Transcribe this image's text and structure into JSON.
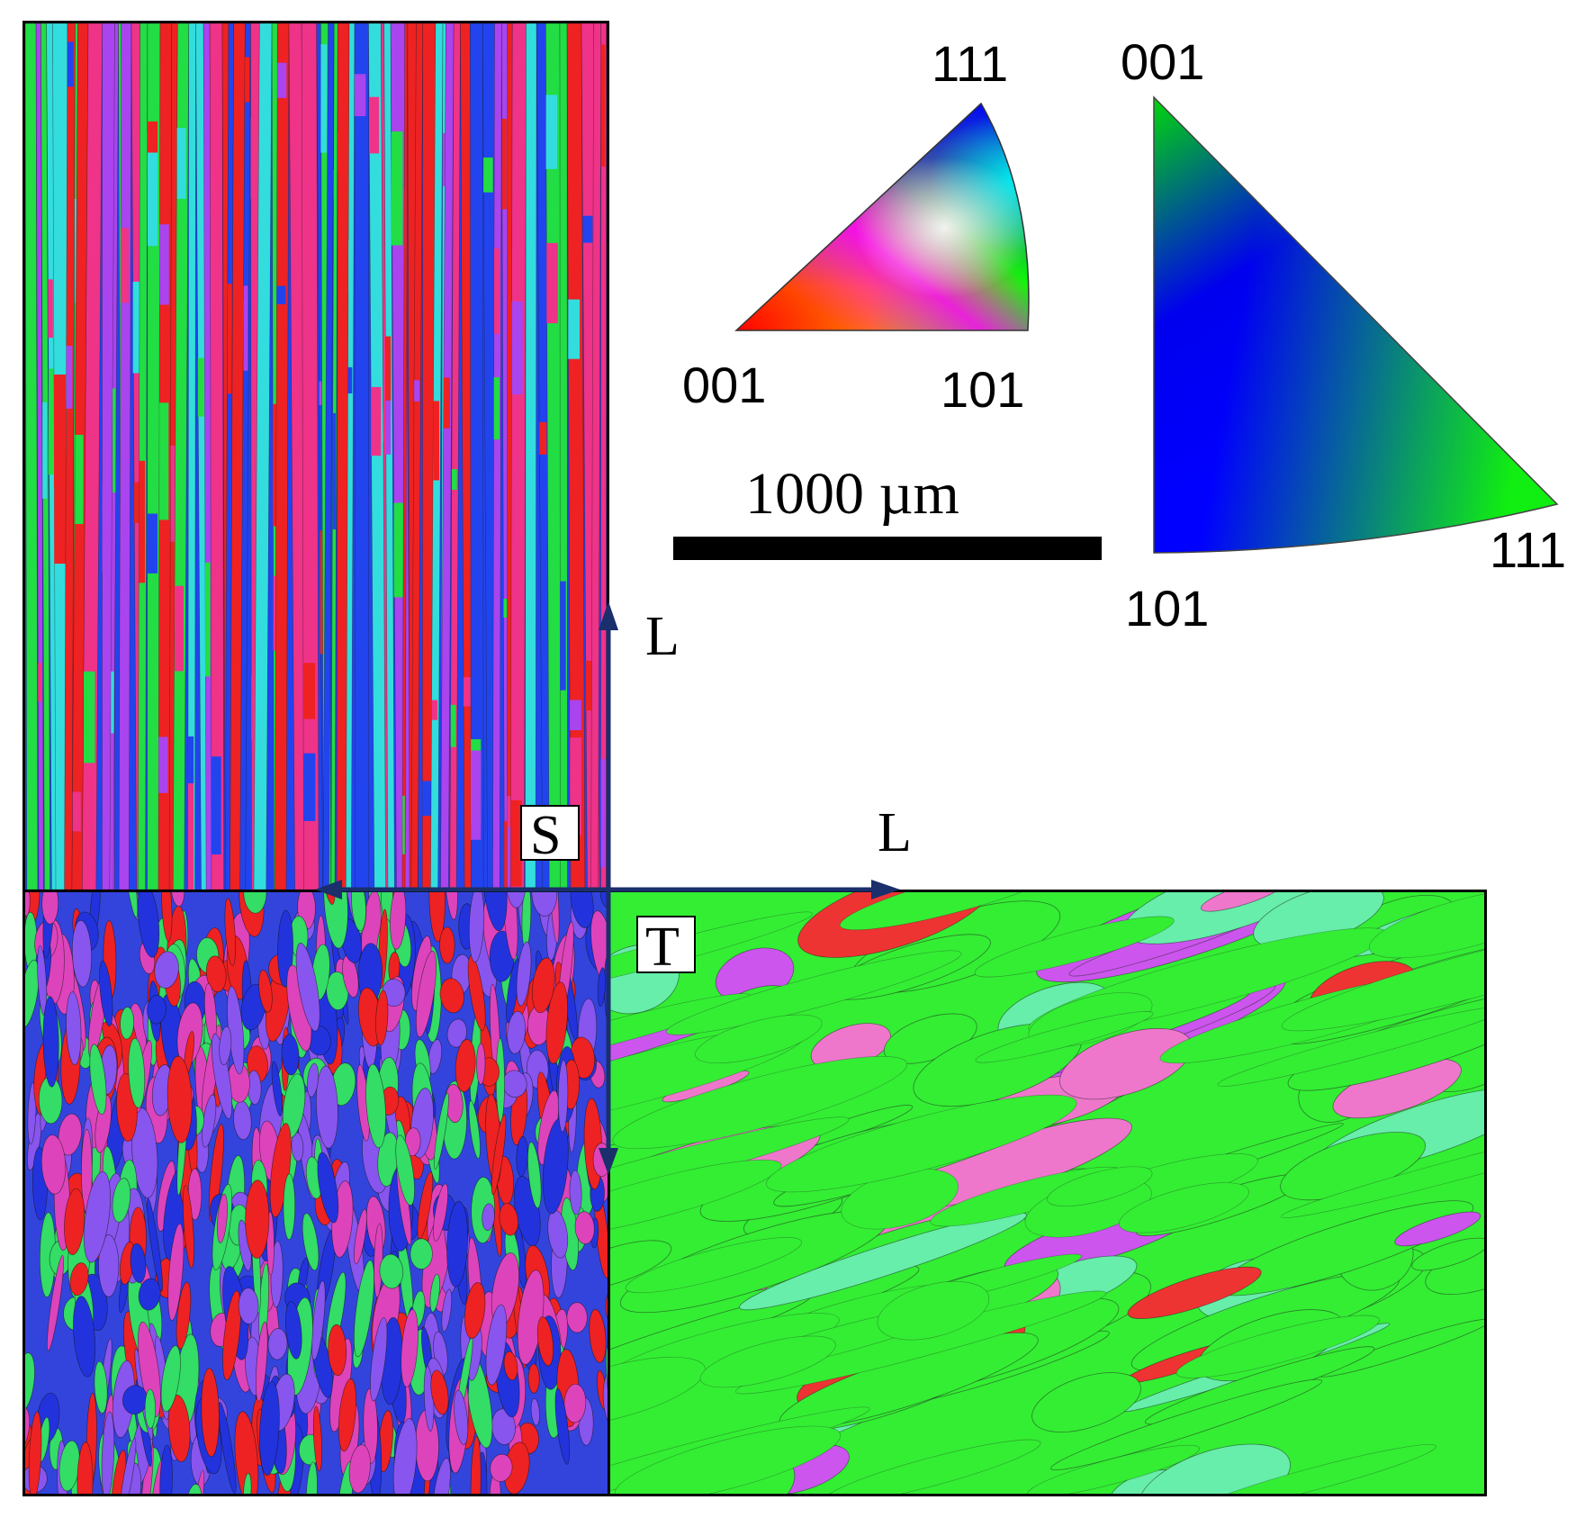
{
  "ipf_legend_color": {
    "vertex_top": "111",
    "vertex_left": "001",
    "vertex_right": "101",
    "colors": {
      "001": "#ff0000",
      "101": "#00ff00",
      "111": "#0000ff"
    }
  },
  "ipf_legend_blue_green": {
    "vertex_top": "001",
    "vertex_bottom_left": "101",
    "vertex_right": "111",
    "colors": {
      "001": "#00e000",
      "101": "#0000ff",
      "111": "#11ee11"
    }
  },
  "scale_bar": {
    "label": "1000 µm"
  },
  "axes": {
    "vertical_label": "L",
    "horizontal_label": "L",
    "box_s": "S",
    "box_t": "T",
    "arrow_color": "#1a2f6b"
  },
  "maps": {
    "top_left": {
      "dominant_colors": [
        "#2244ee",
        "#22dd44",
        "#33dddd",
        "#ee3388",
        "#ee2222",
        "#aa44ee"
      ]
    },
    "bottom_left": {
      "dominant_colors": [
        "#ee2222",
        "#2233dd",
        "#dd44bb",
        "#8855ee",
        "#33dd66"
      ]
    },
    "bottom_right": {
      "dominant_colors": [
        "#33ee33",
        "#cc55ee",
        "#ee3333",
        "#ee77cc",
        "#66eeaa"
      ]
    }
  }
}
